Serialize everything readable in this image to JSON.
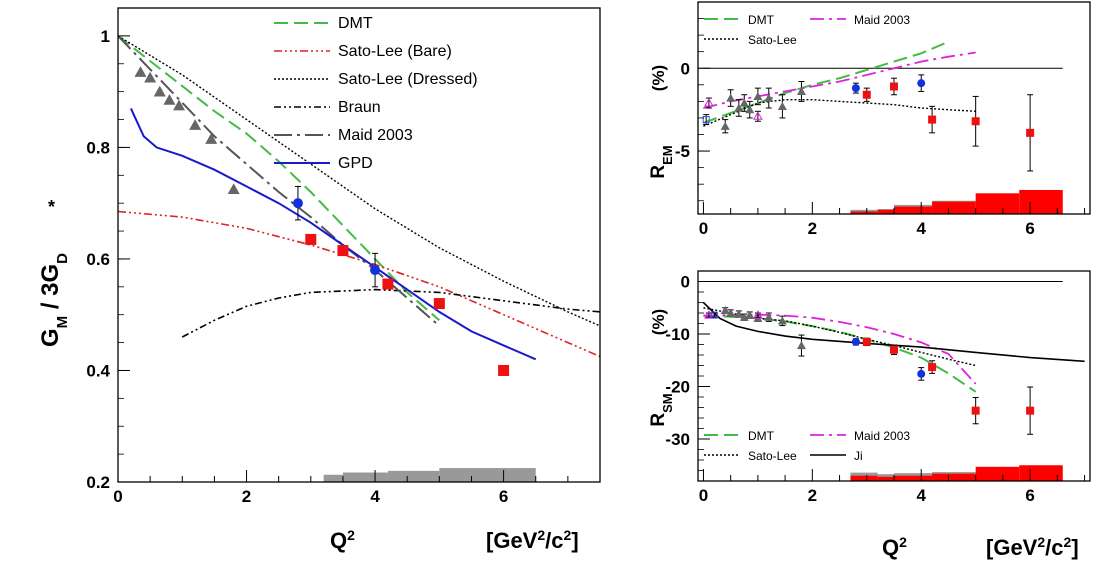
{
  "colors": {
    "dmt": "#44bb44",
    "satoBare": "#dd2222",
    "satoDressed": "#000000",
    "braun": "#000000",
    "maid": "#555555",
    "gpd": "#1a1acc",
    "ji": "#000000",
    "maidR": "#dd22dd",
    "sys": "#999999",
    "sysRed": "#ff0000",
    "dataRed": "#ee1111",
    "dataBlue": "#1133dd",
    "dataGray": "#666666"
  },
  "chart_data": [
    {
      "id": "gm",
      "type": "scatter",
      "ylabel_main": "G",
      "ylabel_sup": "*",
      "ylabel_sub": "M",
      "ylabel_tail": " / 3G",
      "ylabel_sub2": "D",
      "xlabel": "Q",
      "xlabel_sup": "2",
      "unit_a": "[GeV",
      "unit_sup1": "2",
      "unit_b": "/c",
      "unit_sup2": "2",
      "unit_c": "]",
      "xlim": [
        0,
        7.5
      ],
      "ylim": [
        0.2,
        1.05
      ],
      "xticks": [
        0,
        2,
        4,
        6
      ],
      "yticks": [
        0.2,
        0.4,
        0.6,
        0.8,
        1
      ],
      "legend": [
        "DMT",
        "Sato-Lee (Bare)",
        "Sato-Lee (Dressed)",
        "Braun",
        "Maid 2003",
        "GPD"
      ],
      "curves": {
        "dmt": [
          [
            0,
            1
          ],
          [
            0.5,
            0.955
          ],
          [
            1,
            0.91
          ],
          [
            1.5,
            0.865
          ],
          [
            2,
            0.825
          ],
          [
            2.5,
            0.775
          ],
          [
            3,
            0.72
          ],
          [
            3.5,
            0.66
          ],
          [
            4,
            0.6
          ],
          [
            4.5,
            0.54
          ],
          [
            5,
            0.49
          ]
        ],
        "satoBare": [
          [
            0,
            0.685
          ],
          [
            1,
            0.675
          ],
          [
            2,
            0.655
          ],
          [
            3,
            0.625
          ],
          [
            4,
            0.59
          ],
          [
            5,
            0.55
          ],
          [
            6,
            0.5
          ],
          [
            7,
            0.45
          ],
          [
            7.5,
            0.425
          ]
        ],
        "satoDressed": [
          [
            0,
            1
          ],
          [
            1,
            0.93
          ],
          [
            2,
            0.85
          ],
          [
            3,
            0.77
          ],
          [
            4,
            0.69
          ],
          [
            5,
            0.62
          ],
          [
            6,
            0.56
          ],
          [
            7,
            0.505
          ],
          [
            7.5,
            0.48
          ]
        ],
        "braun": [
          [
            1,
            0.46
          ],
          [
            1.5,
            0.49
          ],
          [
            2,
            0.515
          ],
          [
            2.5,
            0.53
          ],
          [
            3,
            0.54
          ],
          [
            4,
            0.545
          ],
          [
            5,
            0.54
          ],
          [
            6,
            0.525
          ],
          [
            7,
            0.51
          ],
          [
            7.5,
            0.505
          ]
        ],
        "maid": [
          [
            0,
            1
          ],
          [
            0.5,
            0.94
          ],
          [
            1,
            0.88
          ],
          [
            1.5,
            0.82
          ],
          [
            2,
            0.77
          ],
          [
            2.5,
            0.72
          ],
          [
            3,
            0.675
          ],
          [
            3.5,
            0.625
          ],
          [
            4,
            0.58
          ],
          [
            4.5,
            0.53
          ],
          [
            5,
            0.48
          ]
        ],
        "gpd": [
          [
            0.2,
            0.87
          ],
          [
            0.4,
            0.82
          ],
          [
            0.6,
            0.8
          ],
          [
            1,
            0.785
          ],
          [
            1.5,
            0.76
          ],
          [
            2,
            0.73
          ],
          [
            2.5,
            0.7
          ],
          [
            3,
            0.665
          ],
          [
            3.5,
            0.625
          ],
          [
            4,
            0.585
          ],
          [
            4.5,
            0.545
          ],
          [
            5,
            0.505
          ],
          [
            5.5,
            0.47
          ],
          [
            6,
            0.445
          ],
          [
            6.5,
            0.42
          ]
        ]
      },
      "points": {
        "triangles": [
          [
            0.35,
            0.935,
            0
          ],
          [
            0.5,
            0.925,
            0
          ],
          [
            0.65,
            0.9,
            0
          ],
          [
            0.8,
            0.885,
            0
          ],
          [
            0.95,
            0.875,
            0
          ],
          [
            1.2,
            0.84,
            0
          ],
          [
            1.45,
            0.815,
            0
          ],
          [
            1.8,
            0.725,
            0
          ]
        ],
        "squares": [
          [
            3.0,
            0.635,
            0
          ],
          [
            3.5,
            0.615,
            0
          ],
          [
            4.2,
            0.555,
            0
          ],
          [
            5.0,
            0.52,
            0
          ],
          [
            6.0,
            0.4,
            0
          ]
        ],
        "circles": [
          [
            2.8,
            0.7,
            0.03
          ],
          [
            4.0,
            0.58,
            0.03
          ]
        ]
      },
      "sys_bands": [
        [
          2.7,
          2.5,
          0.21
        ],
        [
          3.2,
          3.5,
          0.213
        ],
        [
          3.5,
          4.2,
          0.217
        ],
        [
          4.2,
          5.0,
          0.22
        ],
        [
          5.0,
          6.5,
          0.225
        ]
      ]
    },
    {
      "id": "rem",
      "type": "scatter",
      "ylabel": "R",
      "ylabel_sub": "EM",
      "ylabel_unit": "(%)",
      "xlim": [
        -0.1,
        7.1
      ],
      "ylim": [
        -8.8,
        4.0
      ],
      "xticks": [
        0,
        2,
        4,
        6
      ],
      "yticks": [
        0,
        -5
      ],
      "legend": [
        "DMT",
        "Maid 2003",
        "Sato-Lee"
      ],
      "curves": {
        "dmt": [
          [
            0,
            -3.3
          ],
          [
            0.5,
            -2.7
          ],
          [
            1,
            -2.1
          ],
          [
            1.5,
            -1.5
          ],
          [
            2,
            -1.0
          ],
          [
            2.5,
            -0.6
          ],
          [
            3,
            -0.1
          ],
          [
            3.5,
            0.4
          ],
          [
            4,
            0.9
          ],
          [
            4.5,
            1.6
          ]
        ],
        "maidR": [
          [
            0,
            -2.4
          ],
          [
            0.5,
            -2.0
          ],
          [
            1,
            -1.7
          ],
          [
            1.5,
            -1.4
          ],
          [
            2,
            -1.1
          ],
          [
            2.5,
            -0.8
          ],
          [
            3,
            -0.4
          ],
          [
            3.5,
            0
          ],
          [
            4,
            0.4
          ],
          [
            4.5,
            0.7
          ],
          [
            5,
            0.95
          ]
        ],
        "satoDressed": [
          [
            0,
            -3.5
          ],
          [
            0.5,
            -2.8
          ],
          [
            1,
            -2.1
          ],
          [
            1.5,
            -1.9
          ],
          [
            2,
            -1.9
          ],
          [
            2.5,
            -2.0
          ],
          [
            3,
            -2.1
          ],
          [
            3.5,
            -2.2
          ],
          [
            4,
            -2.4
          ],
          [
            4.5,
            -2.5
          ],
          [
            5,
            -2.6
          ]
        ]
      },
      "points": {
        "triangles": [
          [
            0.4,
            -3.5,
            0.4
          ],
          [
            0.5,
            -1.8,
            0.5
          ],
          [
            0.65,
            -2.4,
            0.5
          ],
          [
            0.75,
            -2.1,
            0.5
          ],
          [
            0.85,
            -2.5,
            0.5
          ],
          [
            1,
            -1.7,
            0.5
          ],
          [
            1.2,
            -1.8,
            0.6
          ],
          [
            1.45,
            -2.3,
            0.7
          ],
          [
            1.8,
            -1.4,
            0.6
          ]
        ],
        "squares": [
          [
            3.0,
            -1.6,
            0.4
          ],
          [
            3.5,
            -1.1,
            0.5
          ],
          [
            4.2,
            -3.1,
            0.8
          ],
          [
            5.0,
            -3.2,
            1.5
          ],
          [
            6.0,
            -3.9,
            2.3
          ]
        ],
        "circles": [
          [
            2.8,
            -1.2,
            0.3
          ],
          [
            4.0,
            -0.9,
            0.5
          ]
        ],
        "open": [
          [
            0.1,
            -2.1,
            0.3
          ],
          [
            0.05,
            -3.1,
            0.3
          ],
          [
            1.0,
            -2.9,
            0.3
          ]
        ]
      },
      "sys_gray": [
        [
          2.7,
          3.2,
          0.25
        ],
        [
          3.2,
          3.5,
          0.3
        ],
        [
          3.5,
          4.2,
          0.55
        ],
        [
          4.2,
          5.0,
          0.8
        ]
      ],
      "sys_red": [
        [
          2.7,
          3.2,
          0.15
        ],
        [
          3.2,
          3.5,
          0.25
        ],
        [
          3.5,
          4.2,
          0.45
        ],
        [
          4.2,
          5.0,
          0.75
        ],
        [
          5.0,
          5.8,
          1.25
        ],
        [
          5.8,
          6.6,
          1.45
        ]
      ]
    },
    {
      "id": "rsm",
      "type": "scatter",
      "ylabel": "R",
      "ylabel_sub": "SM",
      "ylabel_unit": "(%)",
      "xlabel": "Q",
      "xlabel_sup": "2",
      "unit_a": "[GeV",
      "unit_sup1": "2",
      "unit_b": "/c",
      "unit_sup2": "2",
      "unit_c": "]",
      "xlim": [
        -0.1,
        7.1
      ],
      "ylim": [
        -38,
        2
      ],
      "xticks": [
        0,
        2,
        4,
        6
      ],
      "yticks": [
        0,
        -10,
        -20,
        -30
      ],
      "legend": [
        "DMT",
        "Maid 2003",
        "Sato-Lee",
        "Ji"
      ],
      "curves": {
        "dmt": [
          [
            0,
            -6.5
          ],
          [
            0.5,
            -6.7
          ],
          [
            1,
            -7.0
          ],
          [
            1.5,
            -7.6
          ],
          [
            2,
            -8.5
          ],
          [
            2.5,
            -9.6
          ],
          [
            3,
            -11.0
          ],
          [
            3.5,
            -12.6
          ],
          [
            4,
            -14.5
          ],
          [
            4.5,
            -17.5
          ],
          [
            5,
            -21
          ]
        ],
        "maidR": [
          [
            0,
            -6.5
          ],
          [
            0.5,
            -6.4
          ],
          [
            1,
            -6.3
          ],
          [
            1.5,
            -6.5
          ],
          [
            2,
            -6.9
          ],
          [
            2.5,
            -7.7
          ],
          [
            3,
            -8.7
          ],
          [
            3.5,
            -10.0
          ],
          [
            4,
            -11.6
          ],
          [
            4.5,
            -13.8
          ],
          [
            5,
            -19.5
          ]
        ],
        "satoDressed": [
          [
            0,
            -5.0
          ],
          [
            0.5,
            -6.0
          ],
          [
            1,
            -7.0
          ],
          [
            1.5,
            -7.5
          ],
          [
            2,
            -8.5
          ],
          [
            2.5,
            -9.7
          ],
          [
            3,
            -11.0
          ],
          [
            3.5,
            -12.2
          ],
          [
            4,
            -13.5
          ],
          [
            4.5,
            -14.8
          ],
          [
            5,
            -16
          ]
        ],
        "ji": [
          [
            0,
            -4.0
          ],
          [
            0.3,
            -7.0
          ],
          [
            0.6,
            -8.5
          ],
          [
            1,
            -9.5
          ],
          [
            1.5,
            -10.4
          ],
          [
            2,
            -11.0
          ],
          [
            3,
            -11.8
          ],
          [
            4,
            -12.5
          ],
          [
            5,
            -13.5
          ],
          [
            6,
            -14.5
          ],
          [
            7,
            -15.2
          ]
        ]
      },
      "points": {
        "triangles": [
          [
            0.4,
            -5.5,
            0.5
          ],
          [
            0.5,
            -6.0,
            0.6
          ],
          [
            0.65,
            -6.2,
            0.6
          ],
          [
            0.75,
            -6.8,
            0.6
          ],
          [
            0.85,
            -6.4,
            0.6
          ],
          [
            1,
            -7.0,
            0.6
          ],
          [
            1.2,
            -6.8,
            0.8
          ],
          [
            1.45,
            -7.5,
            0.9
          ],
          [
            1.8,
            -12.2,
            2.0
          ]
        ],
        "squares": [
          [
            3.0,
            -11.5,
            0.7
          ],
          [
            3.5,
            -13.0,
            0.9
          ],
          [
            4.2,
            -16.3,
            1.2
          ],
          [
            5.0,
            -24.6,
            2.5
          ],
          [
            6.0,
            -24.6,
            4.5
          ]
        ],
        "circles": [
          [
            2.8,
            -11.5,
            0.6
          ],
          [
            4.0,
            -17.6,
            1.2
          ]
        ],
        "open": [
          [
            0.1,
            -6.4,
            0.4
          ],
          [
            0.2,
            -6.4,
            0.4
          ],
          [
            1.0,
            -6.4,
            0.4
          ]
        ]
      },
      "sys_gray": [
        [
          2.7,
          3.2,
          1.6
        ],
        [
          3.2,
          3.5,
          1.3
        ],
        [
          3.5,
          4.2,
          1.5
        ],
        [
          4.2,
          5.0,
          1.7
        ]
      ],
      "sys_red": [
        [
          2.7,
          3.2,
          1.0
        ],
        [
          3.2,
          3.5,
          0.8
        ],
        [
          3.5,
          4.2,
          1.0
        ],
        [
          4.2,
          5.0,
          1.4
        ],
        [
          5.0,
          5.8,
          2.7
        ],
        [
          5.8,
          6.6,
          3.0
        ]
      ]
    }
  ]
}
